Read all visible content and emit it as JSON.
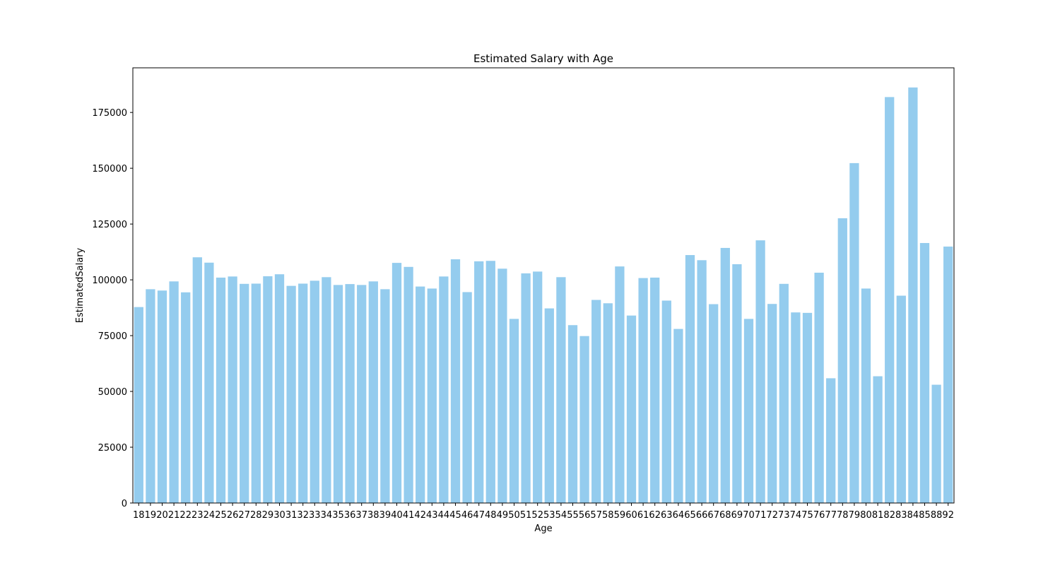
{
  "chart_data": {
    "type": "bar",
    "title": "Estimated Salary with Age",
    "xlabel": "Age",
    "ylabel": "EstimatedSalary",
    "categories": [
      "18",
      "19",
      "20",
      "21",
      "22",
      "23",
      "24",
      "25",
      "26",
      "27",
      "28",
      "29",
      "30",
      "31",
      "32",
      "33",
      "34",
      "35",
      "36",
      "37",
      "38",
      "39",
      "40",
      "41",
      "42",
      "43",
      "44",
      "45",
      "46",
      "47",
      "48",
      "49",
      "50",
      "51",
      "52",
      "53",
      "54",
      "55",
      "56",
      "57",
      "58",
      "59",
      "60",
      "61",
      "62",
      "63",
      "64",
      "65",
      "66",
      "67",
      "68",
      "69",
      "70",
      "71",
      "72",
      "73",
      "74",
      "75",
      "76",
      "77",
      "78",
      "79",
      "80",
      "81",
      "82",
      "83",
      "84",
      "85",
      "88",
      "92"
    ],
    "values": [
      87800,
      95800,
      95200,
      99300,
      94400,
      110100,
      107700,
      101000,
      101500,
      98200,
      98300,
      101600,
      102500,
      97300,
      98300,
      99600,
      101200,
      97700,
      98100,
      97700,
      99300,
      95800,
      107600,
      105800,
      97000,
      96100,
      101500,
      109200,
      94500,
      108300,
      108500,
      105000,
      82500,
      102900,
      103700,
      87200,
      101200,
      79700,
      74800,
      91000,
      89500,
      106000,
      84000,
      100800,
      101000,
      90700,
      78000,
      111100,
      108800,
      89100,
      114300,
      107000,
      82500,
      117700,
      89200,
      98200,
      85400,
      85200,
      103200,
      55900,
      127600,
      152300,
      96100,
      56800,
      181900,
      92900,
      186200,
      116500,
      53000,
      114900
    ],
    "yticks": [
      "0",
      "25000",
      "50000",
      "75000",
      "100000",
      "125000",
      "150000",
      "175000"
    ],
    "ylim": [
      0,
      195000
    ],
    "bar_color": "#94ccee",
    "grid": false,
    "legend": "none"
  }
}
